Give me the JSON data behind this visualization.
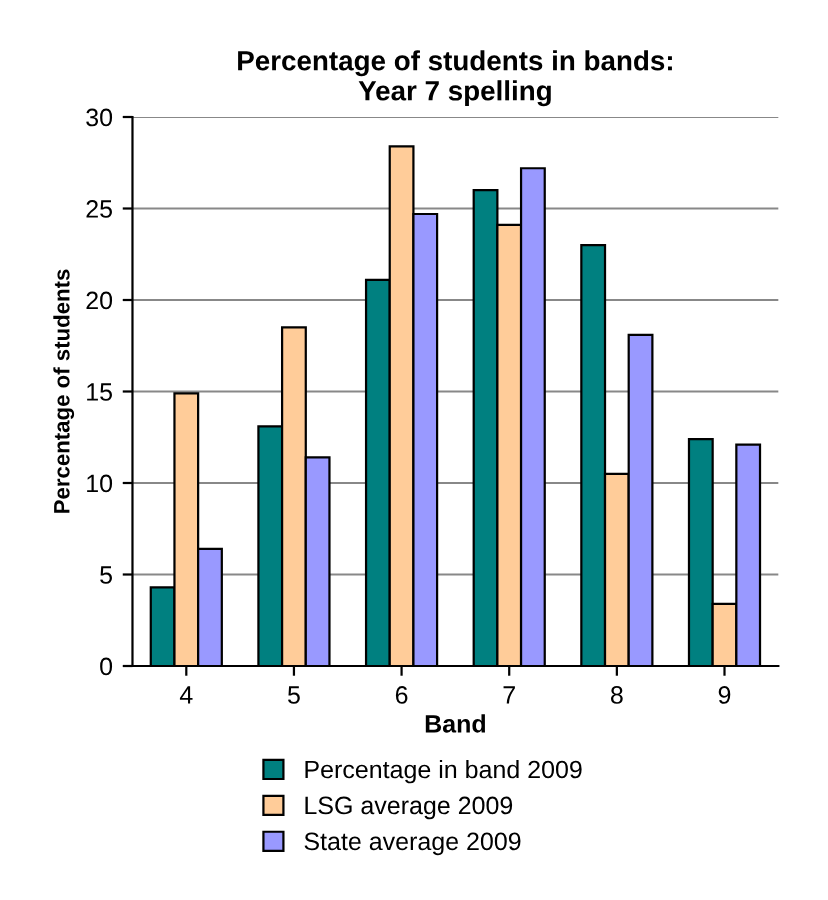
{
  "chart_data": {
    "type": "bar",
    "title": "Percentage of students in bands:\nYear 7 spelling",
    "xlabel": "Band",
    "ylabel": "Percentage of students",
    "categories": [
      "4",
      "5",
      "6",
      "7",
      "8",
      "9"
    ],
    "series": [
      {
        "name": "Percentage in band 2009",
        "color": "#008080",
        "values": [
          4.3,
          13.1,
          21.1,
          26.0,
          23.0,
          12.4
        ]
      },
      {
        "name": "LSG average 2009",
        "color": "#ffcc99",
        "values": [
          14.9,
          18.5,
          28.4,
          24.1,
          10.5,
          3.4
        ]
      },
      {
        "name": "State average 2009",
        "color": "#9999ff",
        "values": [
          6.4,
          11.4,
          24.7,
          27.2,
          18.1,
          12.1
        ]
      }
    ],
    "ylim": [
      0,
      30
    ],
    "yticks": [
      0,
      5,
      10,
      15,
      20,
      25,
      30
    ],
    "grid": "y",
    "legend": "bottom"
  }
}
